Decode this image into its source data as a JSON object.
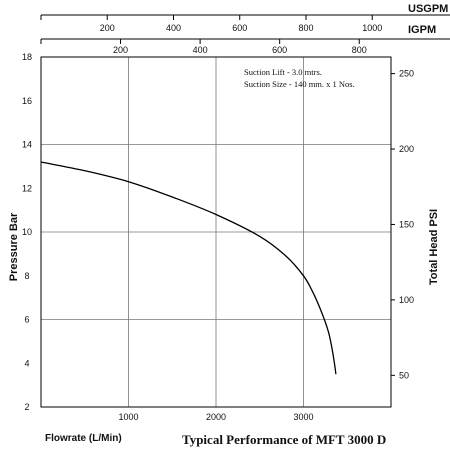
{
  "chart_data": {
    "type": "line",
    "title": "Typical Performance of MFT 3000 D",
    "xlabel": "Flowrate (L/Min)",
    "ylabel": "Pressure Bar",
    "y2label": "Total Head PSI",
    "xlim": [
      0,
      4000
    ],
    "ylim": [
      2,
      18
    ],
    "y2lim": [
      29,
      261
    ],
    "grid": true,
    "x_ticks": [
      1000,
      2000,
      3000
    ],
    "y_ticks": [
      2,
      4,
      6,
      8,
      10,
      12,
      14,
      16,
      18
    ],
    "y2_ticks": [
      50,
      100,
      150,
      200,
      250
    ],
    "top_axes": [
      {
        "unit": "USGPM",
        "ticks": [
          200,
          400,
          600,
          800,
          1000
        ]
      },
      {
        "unit": "IGPM",
        "ticks": [
          200,
          400,
          600,
          800
        ]
      }
    ],
    "annotations": [
      "Suction Lift - 3.0 mtrs.",
      "Suction Size - 140 mm. x 1 Nos."
    ],
    "series": [
      {
        "x": [
          0,
          500,
          1000,
          1500,
          2000,
          2500,
          2800,
          3000,
          3100,
          3200,
          3280,
          3320,
          3350,
          3370
        ],
        "y": [
          13.2,
          12.8,
          12.3,
          11.6,
          10.8,
          9.8,
          8.9,
          8.0,
          7.3,
          6.4,
          5.5,
          4.8,
          4.1,
          3.5
        ]
      }
    ],
    "line_color": "#000000"
  }
}
